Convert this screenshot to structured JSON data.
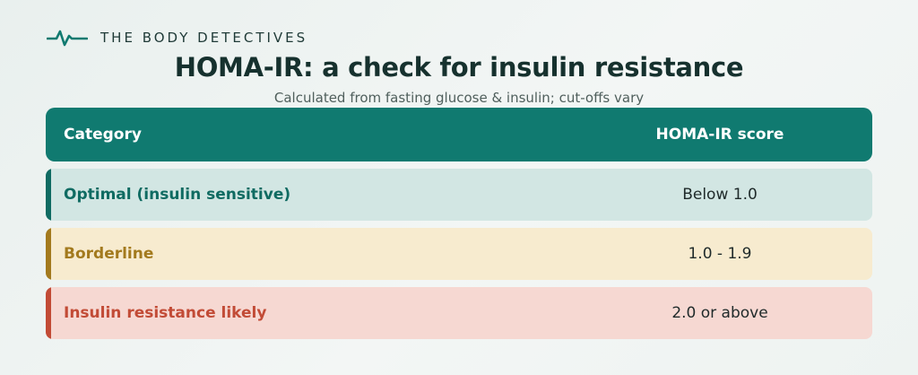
{
  "brand": {
    "name": "THE BODY DETECTIVES",
    "icon": "heartbeat-icon",
    "color": "#107a70"
  },
  "header": {
    "title": "HOMA-IR: a check for insulin resistance",
    "subtitle": "Calculated from fasting glucose & insulin; cut-offs vary"
  },
  "table": {
    "columns": [
      "Category",
      "HOMA-IR score"
    ],
    "rows": [
      {
        "category": "Optimal (insulin sensitive)",
        "score": "Below 1.0",
        "color": "#0f6b62"
      },
      {
        "category": "Borderline",
        "score": "1.0 - 1.9",
        "color": "#a37a1e"
      },
      {
        "category": "Insulin resistance likely",
        "score": "2.0 or above",
        "color": "#c24b36"
      }
    ]
  }
}
